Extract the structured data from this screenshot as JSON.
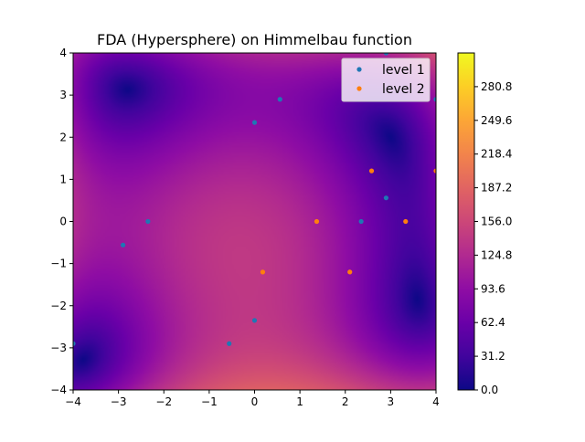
{
  "chart_data": {
    "type": "scatter",
    "title": "FDA (Hypersphere) on Himmelbau function",
    "xlabel": "",
    "ylabel": "",
    "xlim": [
      -4,
      4
    ],
    "ylim": [
      -4,
      4
    ],
    "xticks": [
      "−4",
      "−3",
      "−2",
      "−1",
      "0",
      "1",
      "2",
      "3",
      "4"
    ],
    "yticks": [
      "−4",
      "−3",
      "−2",
      "−1",
      "0",
      "1",
      "2",
      "3",
      "4"
    ],
    "xtick_values": [
      -4,
      -3,
      -2,
      -1,
      0,
      1,
      2,
      3,
      4
    ],
    "ytick_values": [
      -4,
      -3,
      -2,
      -1,
      0,
      1,
      2,
      3,
      4
    ],
    "background": "Himmelblau function heatmap, plasma colormap",
    "colormap": "plasma",
    "colorbar": {
      "min": 0.0,
      "max": 312.0,
      "ticks": [
        "0.0",
        "31.2",
        "62.4",
        "93.6",
        "124.8",
        "156.0",
        "187.2",
        "218.4",
        "249.6",
        "280.8"
      ],
      "tick_values": [
        0.0,
        31.2,
        62.4,
        93.6,
        124.8,
        156.0,
        187.2,
        218.4,
        249.6,
        280.8
      ]
    },
    "grid": false,
    "legend_position": "top-right",
    "series": [
      {
        "name": "level 1",
        "color": "#1f77b4",
        "points": [
          [
            0.56,
            2.9
          ],
          [
            0.0,
            2.35
          ],
          [
            -2.35,
            0.0
          ],
          [
            -2.9,
            -0.56
          ],
          [
            0.0,
            -2.35
          ],
          [
            -0.56,
            -2.9
          ],
          [
            2.35,
            0.0
          ],
          [
            2.9,
            0.56
          ],
          [
            -4.0,
            -2.9
          ],
          [
            4.0,
            2.9
          ],
          [
            2.9,
            4.0
          ]
        ]
      },
      {
        "name": "level 2",
        "color": "#ff7f0e",
        "points": [
          [
            2.58,
            1.2
          ],
          [
            1.37,
            0.0
          ],
          [
            0.18,
            -1.2
          ],
          [
            2.1,
            -1.2
          ],
          [
            3.33,
            0.0
          ],
          [
            4.0,
            1.2
          ]
        ]
      }
    ]
  }
}
